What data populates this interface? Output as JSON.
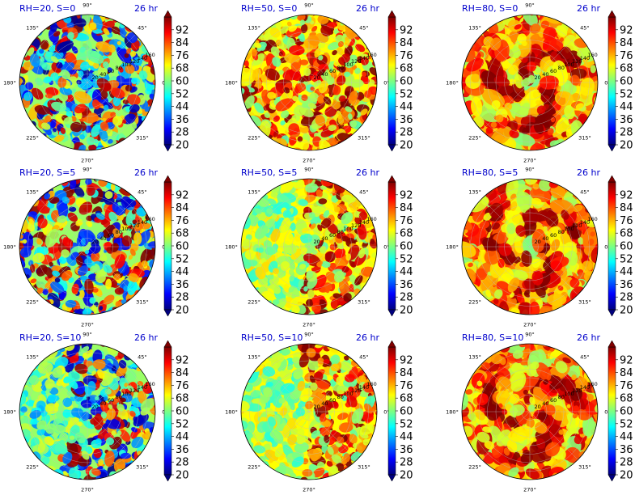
{
  "colors": {
    "title": "#0000cc",
    "background": "#ffffff",
    "colormap": [
      "#00007f",
      "#0000ff",
      "#007fff",
      "#00ffff",
      "#7fff7f",
      "#ffff00",
      "#ff7f00",
      "#ff0000",
      "#7f0000"
    ]
  },
  "chart_data": {
    "type": "heatmap",
    "projection": "polar",
    "colormap": "jet",
    "time_label": "26 hr",
    "angle_ticks": [
      "0°",
      "45°",
      "90°",
      "135°",
      "180°",
      "225°",
      "270°",
      "315°"
    ],
    "radius_ticks": [
      "20",
      "40",
      "60",
      "80",
      "100",
      "120",
      "140",
      "160"
    ],
    "color_range": [
      20,
      100
    ],
    "colorbar_ticks": [
      "20",
      "28",
      "36",
      "44",
      "52",
      "60",
      "68",
      "76",
      "84",
      "92"
    ],
    "panels": [
      {
        "title": "RH=20, S=0",
        "rh": 20,
        "s": 0
      },
      {
        "title": "RH=50, S=0",
        "rh": 50,
        "s": 0
      },
      {
        "title": "RH=80, S=0",
        "rh": 80,
        "s": 0
      },
      {
        "title": "RH=20, S=5",
        "rh": 20,
        "s": 5
      },
      {
        "title": "RH=50, S=5",
        "rh": 50,
        "s": 5
      },
      {
        "title": "RH=80, S=5",
        "rh": 80,
        "s": 5
      },
      {
        "title": "RH=20, S=10",
        "rh": 20,
        "s": 10
      },
      {
        "title": "RH=50, S=10",
        "rh": 50,
        "s": 10
      },
      {
        "title": "RH=80, S=10",
        "rh": 80,
        "s": 10
      }
    ]
  }
}
